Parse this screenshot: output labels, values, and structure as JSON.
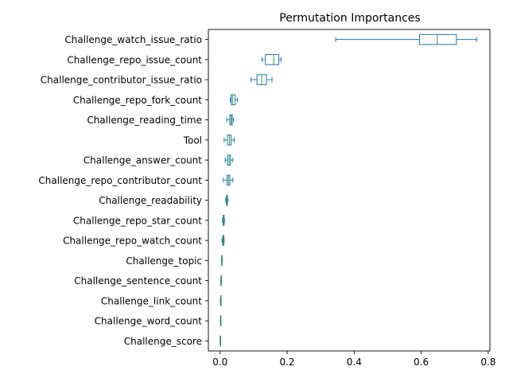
{
  "chart_data": {
    "type": "boxplot",
    "orientation": "horizontal",
    "title": "Permutation Importances",
    "xlim": [
      -0.035,
      0.805
    ],
    "xticks": [
      0.0,
      0.2,
      0.4,
      0.6,
      0.8
    ],
    "xtick_labels": [
      "0.0",
      "0.2",
      "0.4",
      "0.6",
      "0.8"
    ],
    "box_color": "#1f77b4",
    "median_color": "#2ca02c",
    "categories": [
      "Challenge_watch_issue_ratio",
      "Challenge_repo_issue_count",
      "Challenge_contributor_issue_ratio",
      "Challenge_repo_fork_count",
      "Challenge_reading_time",
      "Tool",
      "Challenge_answer_count",
      "Challenge_repo_contributor_count",
      "Challenge_readability",
      "Challenge_repo_star_count",
      "Challenge_repo_watch_count",
      "Challenge_topic",
      "Challenge_sentence_count",
      "Challenge_link_count",
      "Challenge_word_count",
      "Challenge_score"
    ],
    "boxes": [
      {
        "whislo": 0.345,
        "q1": 0.595,
        "med": 0.648,
        "q3": 0.705,
        "whishi": 0.765
      },
      {
        "whislo": 0.125,
        "q1": 0.135,
        "med": 0.16,
        "q3": 0.175,
        "whishi": 0.182
      },
      {
        "whislo": 0.092,
        "q1": 0.11,
        "med": 0.124,
        "q3": 0.138,
        "whishi": 0.155
      },
      {
        "whislo": 0.03,
        "q1": 0.033,
        "med": 0.037,
        "q3": 0.045,
        "whishi": 0.052
      },
      {
        "whislo": 0.02,
        "q1": 0.029,
        "med": 0.033,
        "q3": 0.036,
        "whishi": 0.04
      },
      {
        "whislo": 0.012,
        "q1": 0.022,
        "med": 0.028,
        "q3": 0.033,
        "whishi": 0.042
      },
      {
        "whislo": 0.015,
        "q1": 0.022,
        "med": 0.027,
        "q3": 0.031,
        "whishi": 0.038
      },
      {
        "whislo": 0.01,
        "q1": 0.021,
        "med": 0.025,
        "q3": 0.029,
        "whishi": 0.038
      },
      {
        "whislo": 0.017,
        "q1": 0.019,
        "med": 0.02,
        "q3": 0.022,
        "whishi": 0.023
      },
      {
        "whislo": 0.007,
        "q1": 0.009,
        "med": 0.01,
        "q3": 0.012,
        "whishi": 0.013
      },
      {
        "whislo": 0.006,
        "q1": 0.008,
        "med": 0.009,
        "q3": 0.011,
        "whishi": 0.012
      },
      {
        "whislo": 0.004,
        "q1": 0.0045,
        "med": 0.005,
        "q3": 0.0055,
        "whishi": 0.006
      },
      {
        "whislo": 0.002,
        "q1": 0.0025,
        "med": 0.003,
        "q3": 0.0035,
        "whishi": 0.004
      },
      {
        "whislo": 0.001,
        "q1": 0.0015,
        "med": 0.002,
        "q3": 0.0025,
        "whishi": 0.003
      },
      {
        "whislo": 0.001,
        "q1": 0.0012,
        "med": 0.0015,
        "q3": 0.0018,
        "whishi": 0.002
      },
      {
        "whislo": 0.0,
        "q1": 0.0003,
        "med": 0.0005,
        "q3": 0.0007,
        "whishi": 0.001
      }
    ]
  }
}
